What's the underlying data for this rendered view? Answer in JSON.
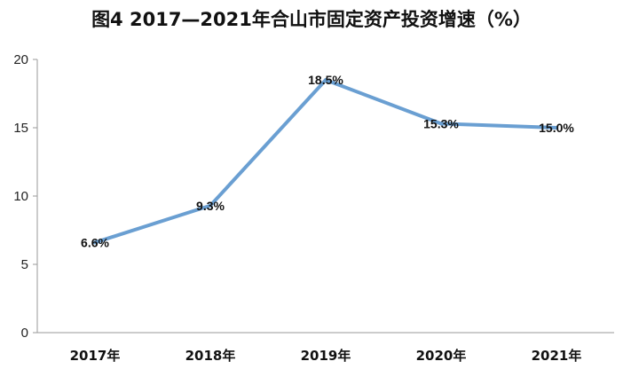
{
  "chart_data": {
    "type": "line",
    "title": "图4  2017—2021年合山市固定资产投资增速（%）",
    "categories": [
      "2017年",
      "2018年",
      "2019年",
      "2020年",
      "2021年"
    ],
    "series": [
      {
        "values": [
          6.6,
          9.3,
          18.5,
          15.3,
          15.0
        ]
      }
    ],
    "data_labels": [
      "6.6%",
      "9.3%",
      "18.5%",
      "15.3%",
      "15.0%"
    ],
    "yticks": [
      "0",
      "5",
      "10",
      "15",
      "20"
    ],
    "ylim": [
      0,
      20
    ],
    "xlabel": "",
    "ylabel": "",
    "grid": false,
    "colors": {
      "line": "#6a9fd2",
      "axis": "#9a9a9a"
    }
  }
}
